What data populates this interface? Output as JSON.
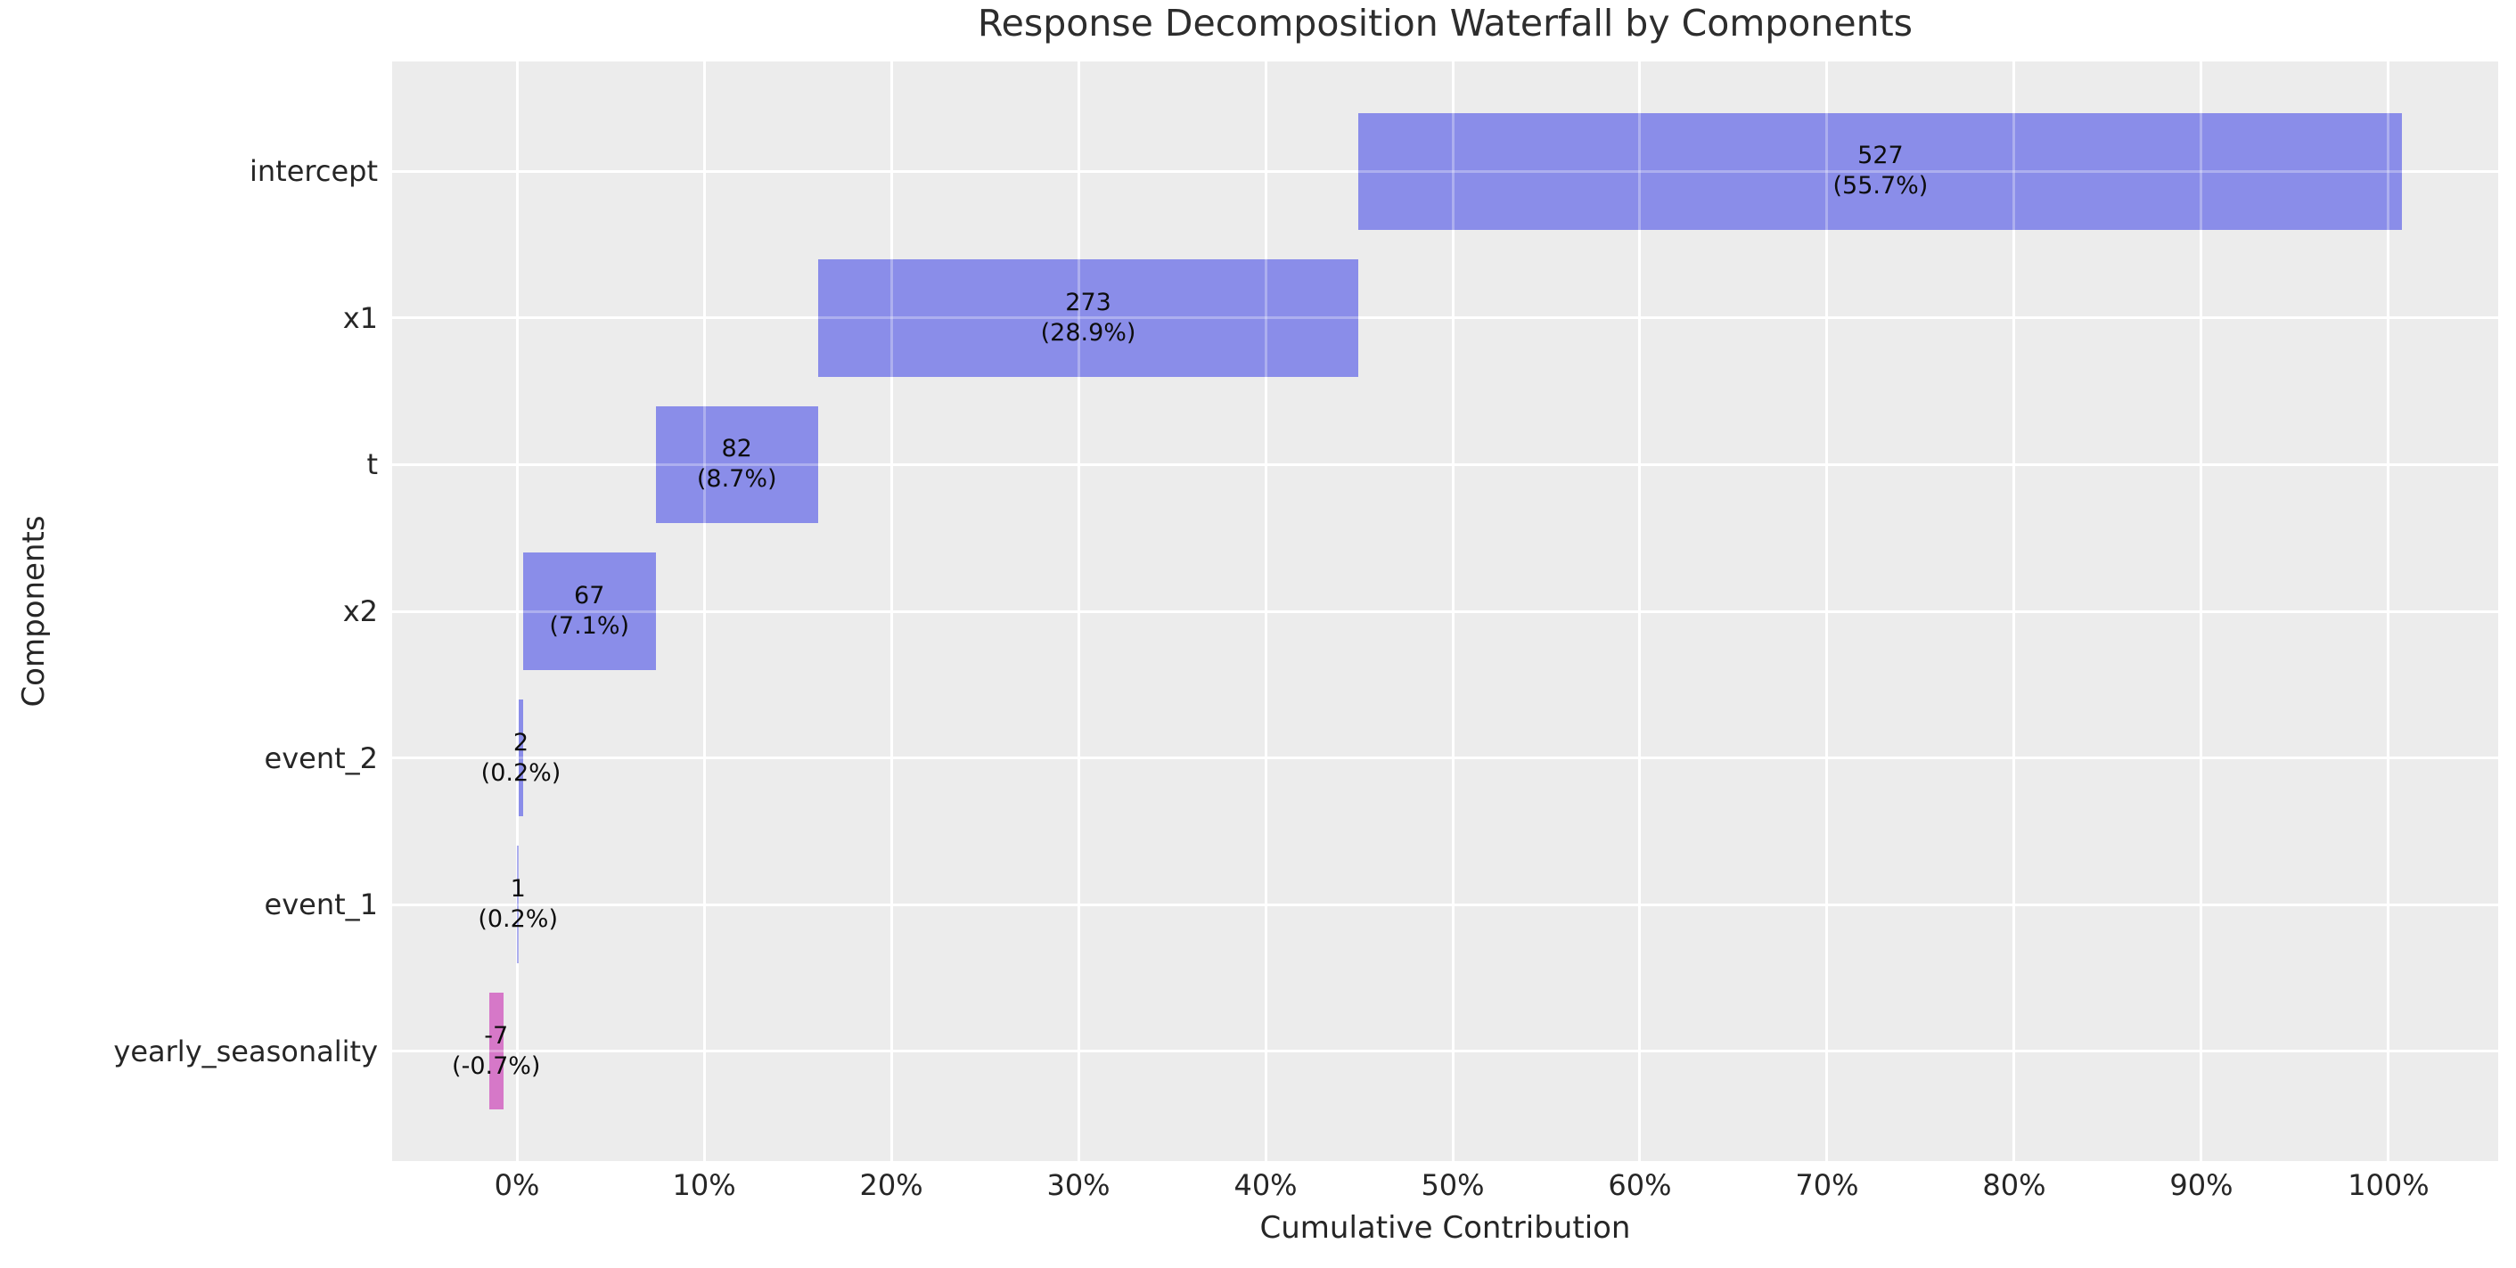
{
  "title": "Response Decomposition Waterfall by Components",
  "x_axis_label": "Cumulative Contribution",
  "y_axis_label": "Components",
  "chart_data": {
    "type": "bar",
    "subtype": "horizontal-waterfall",
    "title": "Response Decomposition Waterfall by Components",
    "xlabel": "Cumulative Contribution",
    "ylabel": "Components",
    "legend": "none",
    "grid": true,
    "categories": [
      "intercept",
      "x1",
      "t",
      "x2",
      "event_2",
      "event_1",
      "yearly_seasonality"
    ],
    "values": [
      527,
      273,
      82,
      67,
      2,
      1,
      -7
    ],
    "pct_of_total": [
      55.7,
      28.9,
      8.7,
      7.1,
      0.2,
      0.2,
      -0.7
    ],
    "bar_labels": [
      {
        "value": "527",
        "pct": "(55.7%)"
      },
      {
        "value": "273",
        "pct": "(28.9%)"
      },
      {
        "value": "82",
        "pct": "(8.7%)"
      },
      {
        "value": "67",
        "pct": "(7.1%)"
      },
      {
        "value": "2",
        "pct": "(0.2%)"
      },
      {
        "value": "1",
        "pct": "(0.2%)"
      },
      {
        "value": "-7",
        "pct": "(-0.7%)"
      }
    ],
    "bar_spans_pct": [
      [
        44.97,
        100.74
      ],
      [
        16.08,
        44.97
      ],
      [
        7.41,
        16.08
      ],
      [
        0.32,
        7.41
      ],
      [
        0.106,
        0.318
      ],
      [
        0.0,
        0.106
      ],
      [
        -1.48,
        -0.74
      ]
    ],
    "bar_colors": [
      "#8A8DE9",
      "#8A8DE9",
      "#8A8DE9",
      "#8A8DE9",
      "#8A8DE9",
      "#8A8DE9",
      "#D678C8"
    ],
    "x_ticks": {
      "pcts": [
        0,
        10,
        20,
        30,
        40,
        50,
        60,
        70,
        80,
        90,
        100
      ],
      "labels": [
        "0%",
        "10%",
        "20%",
        "30%",
        "40%",
        "50%",
        "60%",
        "70%",
        "80%",
        "90%",
        "100%"
      ]
    },
    "xlim": [
      -6.67,
      105.86
    ],
    "colors": {
      "bar_positive": "#8A8DE9",
      "bar_negative": "#D678C8",
      "panel_bg": "#ECECEC",
      "grid": "#FFFFFF",
      "text": "#262626",
      "title_text": "#2d2d2d",
      "bar_label_text": "#0d0d0d"
    }
  }
}
